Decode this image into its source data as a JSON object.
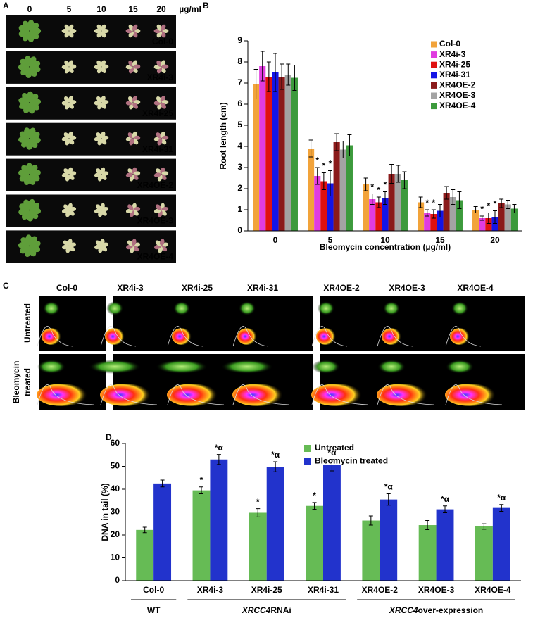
{
  "panel_a": {
    "label": "A",
    "columns": [
      "0",
      "5",
      "10",
      "15",
      "20"
    ],
    "unit": "µg/ml",
    "rows": [
      "Col-0",
      "XR4i-3",
      "XR4i-25",
      "XR4i-31",
      "XR4OE-2",
      "XR4OE-3",
      "XR4OE-4"
    ]
  },
  "chart_data": [
    {
      "type": "bar",
      "label": "B",
      "ylabel": "Root length (cm)",
      "xlabel": "Bleomycin concentration (µg/ml)",
      "categories": [
        "0",
        "5",
        "10",
        "15",
        "20"
      ],
      "ylim": [
        0,
        9
      ],
      "yticks": [
        0,
        1,
        2,
        3,
        4,
        5,
        6,
        7,
        8,
        9
      ],
      "legend": "upper right",
      "series": [
        {
          "name": "Col-0",
          "color": "#f2a33a",
          "values": [
            6.95,
            3.9,
            2.2,
            1.35,
            1.0
          ],
          "errors": [
            0.7,
            0.4,
            0.3,
            0.25,
            0.15
          ],
          "annotations": [
            null,
            null,
            null,
            null,
            null
          ]
        },
        {
          "name": "XR4i-3",
          "color": "#e03ce0",
          "values": [
            7.8,
            2.6,
            1.5,
            0.85,
            0.6
          ],
          "errors": [
            0.7,
            0.4,
            0.25,
            0.15,
            0.1
          ],
          "annotations": [
            null,
            "*",
            "*",
            "*",
            "*"
          ]
        },
        {
          "name": "XR4i-25",
          "color": "#e01010",
          "values": [
            7.3,
            2.35,
            1.35,
            0.8,
            0.6
          ],
          "errors": [
            0.7,
            0.4,
            0.25,
            0.2,
            0.25
          ],
          "annotations": [
            null,
            "*",
            "*",
            "*",
            "*"
          ]
        },
        {
          "name": "XR4i-31",
          "color": "#1414e6",
          "values": [
            7.5,
            2.25,
            1.55,
            0.95,
            0.65
          ],
          "errors": [
            0.9,
            0.6,
            0.3,
            0.3,
            0.3
          ],
          "annotations": [
            null,
            "*",
            "*",
            null,
            "*"
          ]
        },
        {
          "name": "XR4OE-2",
          "color": "#8b1a1a",
          "values": [
            7.3,
            4.2,
            2.7,
            1.8,
            1.3
          ],
          "errors": [
            0.6,
            0.4,
            0.45,
            0.3,
            0.2
          ],
          "annotations": [
            null,
            null,
            null,
            null,
            null
          ]
        },
        {
          "name": "XR4OE-3",
          "color": "#a3a3a3",
          "values": [
            7.4,
            3.85,
            2.7,
            1.6,
            1.25
          ],
          "errors": [
            0.5,
            0.4,
            0.4,
            0.35,
            0.2
          ],
          "annotations": [
            null,
            null,
            null,
            null,
            null
          ]
        },
        {
          "name": "XR4OE-4",
          "color": "#3c9a3c",
          "values": [
            7.25,
            4.05,
            2.4,
            1.45,
            1.05
          ],
          "errors": [
            0.6,
            0.5,
            0.4,
            0.4,
            0.2
          ],
          "annotations": [
            null,
            null,
            null,
            null,
            null
          ]
        }
      ]
    },
    {
      "type": "bar",
      "label": "D",
      "ylabel": "DNA in tail (%)",
      "categories": [
        "Col-0",
        "XR4i-3",
        "XR4i-25",
        "XR4i-31",
        "XR4OE-2",
        "XR4OE-3",
        "XR4OE-4"
      ],
      "ylim": [
        0,
        60
      ],
      "yticks": [
        0,
        10,
        20,
        30,
        40,
        50,
        60
      ],
      "legend": "upper center",
      "groups": [
        {
          "label": "WT"
        },
        {
          "gene": "XRCC4",
          "label": "RNAi"
        },
        {
          "gene": "XRCC4",
          "label": "over-expression"
        }
      ],
      "series": [
        {
          "name": "Untreated",
          "color": "#66bb55",
          "values": [
            22.2,
            39.5,
            29.7,
            32.7,
            26.3,
            24.3,
            23.7
          ],
          "errors": [
            1.2,
            1.5,
            1.8,
            1.5,
            2.0,
            2.0,
            1.2
          ],
          "annotations": [
            null,
            "*",
            "*",
            "*",
            null,
            null,
            null
          ]
        },
        {
          "name": "Bleomycin treated",
          "color": "#2233cc",
          "values": [
            42.5,
            53.0,
            49.8,
            50.5,
            35.5,
            31.2,
            31.8
          ],
          "errors": [
            1.5,
            2.2,
            2.2,
            2.5,
            2.5,
            1.5,
            1.5
          ],
          "annotations": [
            null,
            "*α",
            "*α",
            "*α",
            "*α",
            "*α",
            "*α"
          ]
        }
      ]
    }
  ],
  "panel_c": {
    "label": "C",
    "columns": [
      "Col-0",
      "XR4i-3",
      "XR4i-25",
      "XR4i-31",
      "XR4OE-2",
      "XR4OE-3",
      "XR4OE-4"
    ],
    "rows": [
      [
        "Untreated"
      ],
      [
        "Bleomycin",
        "treated"
      ]
    ]
  }
}
